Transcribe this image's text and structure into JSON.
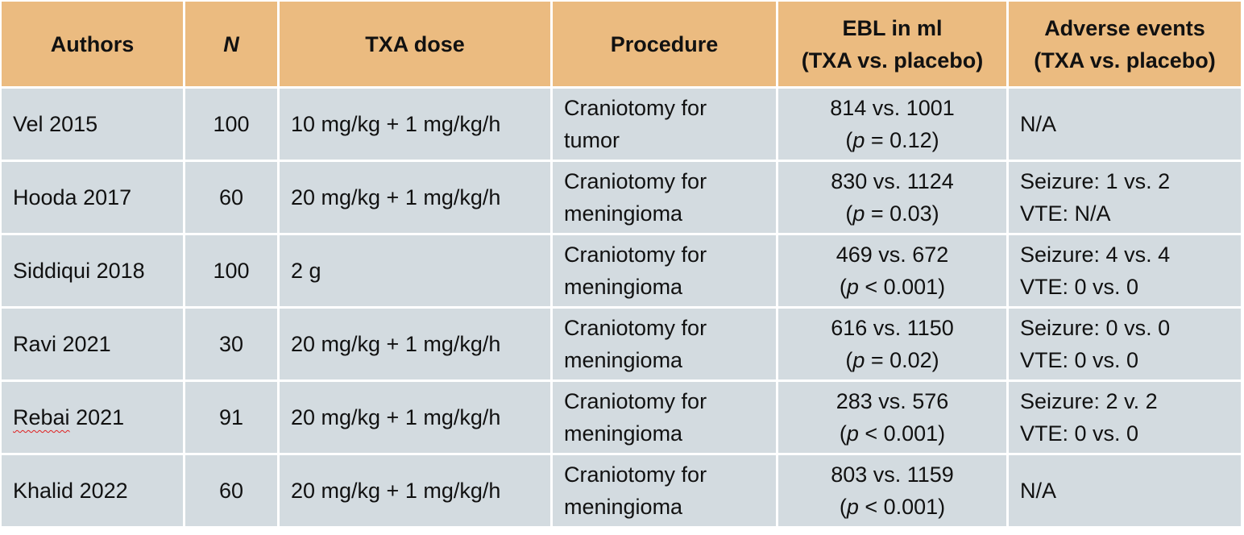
{
  "headers": {
    "authors": "Authors",
    "n": "N",
    "dose": "TXA dose",
    "procedure": "Procedure",
    "ebl_line1": "EBL in ml",
    "ebl_line2": "(TXA vs. placebo)",
    "ae_line1": "Adverse events",
    "ae_line2": "(TXA vs. placebo)"
  },
  "colors": {
    "header_bg": "#ebbb80",
    "row_bg": "#d3dbe0",
    "spellcheck_underline": "#e02020"
  },
  "rows": [
    {
      "author_name": "Vel",
      "author_year": "2015",
      "n": "100",
      "dose": "10 mg/kg + 1 mg/kg/h",
      "procedure": [
        "Craniotomy for",
        "tumor"
      ],
      "ebl": "814 vs. 1001",
      "p_open": "(",
      "p_letter": "p",
      "p_rest": " = 0.12)",
      "adverse": [
        "N/A"
      ]
    },
    {
      "author_name": "Hooda",
      "author_year": "2017",
      "n": "60",
      "dose": "20 mg/kg + 1 mg/kg/h",
      "procedure": [
        "Craniotomy for",
        "meningioma"
      ],
      "ebl": "830 vs. 1124",
      "p_open": "(",
      "p_letter": "p",
      "p_rest": " = 0.03)",
      "adverse": [
        "Seizure: 1 vs. 2",
        "VTE: N/A"
      ]
    },
    {
      "author_name": "Siddiqui",
      "author_year": "2018",
      "n": "100",
      "dose": "2 g",
      "procedure": [
        "Craniotomy for",
        "meningioma"
      ],
      "ebl": "469 vs. 672",
      "p_open": "(",
      "p_letter": "p",
      "p_rest": " < 0.001)",
      "adverse": [
        "Seizure: 4 vs. 4",
        "VTE: 0 vs. 0"
      ]
    },
    {
      "author_name": "Ravi",
      "author_year": "2021",
      "n": "30",
      "dose": "20 mg/kg + 1 mg/kg/h",
      "procedure": [
        "Craniotomy for",
        "meningioma"
      ],
      "ebl": "616 vs. 1150",
      "p_open": "(",
      "p_letter": "p",
      "p_rest": " = 0.02)",
      "adverse": [
        "Seizure: 0 vs. 0",
        "VTE: 0 vs. 0"
      ]
    },
    {
      "author_name": "Rebai",
      "author_year": "2021",
      "n": "91",
      "dose": "20 mg/kg + 1 mg/kg/h",
      "procedure": [
        "Craniotomy for",
        "meningioma"
      ],
      "ebl": "283 vs. 576",
      "p_open": "(",
      "p_letter": "p",
      "p_rest": " < 0.001)",
      "adverse": [
        "Seizure: 2 v. 2",
        "VTE: 0 vs. 0"
      ]
    },
    {
      "author_name": "Khalid",
      "author_year": "2022",
      "n": "60",
      "dose": "20 mg/kg + 1 mg/kg/h",
      "procedure": [
        "Craniotomy for",
        "meningioma"
      ],
      "ebl": "803 vs. 1159",
      "p_open": "(",
      "p_letter": "p",
      "p_rest": " < 0.001)",
      "adverse": [
        "N/A"
      ]
    }
  ]
}
